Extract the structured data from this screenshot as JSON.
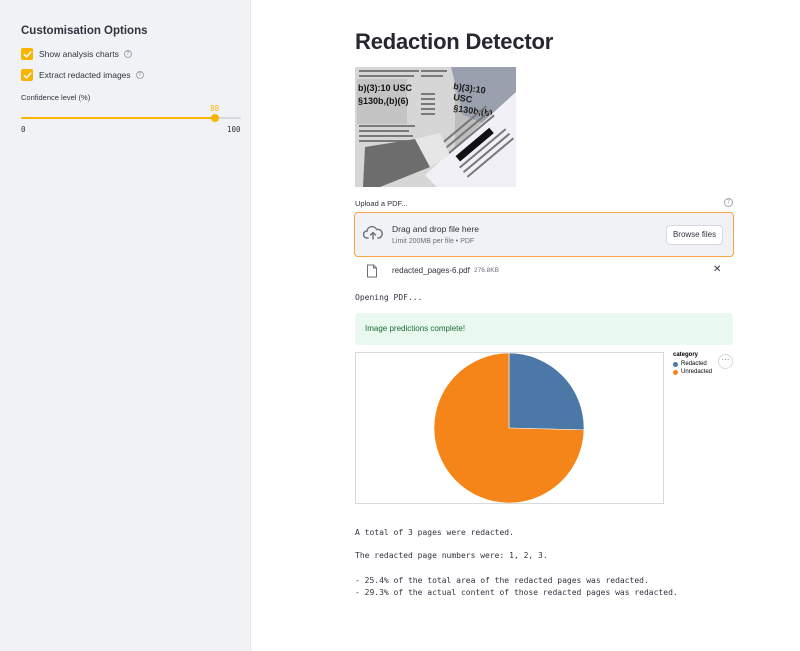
{
  "sidebar": {
    "title": "Customisation Options",
    "checkboxes": [
      {
        "label": "Show analysis charts",
        "checked": true
      },
      {
        "label": "Extract redacted images",
        "checked": true
      }
    ],
    "slider": {
      "label": "Confidence level (%)",
      "value": "88",
      "min": "0",
      "max": "100",
      "fraction": 0.88
    }
  },
  "main": {
    "title": "Redaction Detector",
    "hero_text": {
      "line1": "b)(3):10 USC",
      "line2": "§130b,(b)(6)",
      "line3": "b)(3):10",
      "line4": "USC",
      "line5": "§130b,(b)"
    },
    "upload": {
      "label": "Upload a PDF...",
      "drop_text": "Drag and drop file here",
      "limit_text": "Limit 200MB per file • PDF",
      "browse_label": "Browse files"
    },
    "file": {
      "name": "redacted_pages-6.pdf",
      "size": "276.8KB",
      "close": "✕"
    },
    "status": "Opening PDF...",
    "success": "Image predictions complete!",
    "results": [
      "A total of 3 pages were redacted.",
      "The redacted page numbers were: 1, 2, 3.",
      "- 25.4% of the total area of the redacted pages was redacted.",
      "- 29.3% of the actual content of those redacted pages was redacted."
    ],
    "more_label": "···"
  },
  "colors": {
    "accent": "#f7b500",
    "redacted": "#4c78a8",
    "unredacted": "#f58518"
  },
  "chart_data": {
    "type": "pie",
    "legend_title": "category",
    "legend_position": "right",
    "categories": [
      "Redacted",
      "Unredacted"
    ],
    "values": [
      25.4,
      74.6
    ]
  }
}
